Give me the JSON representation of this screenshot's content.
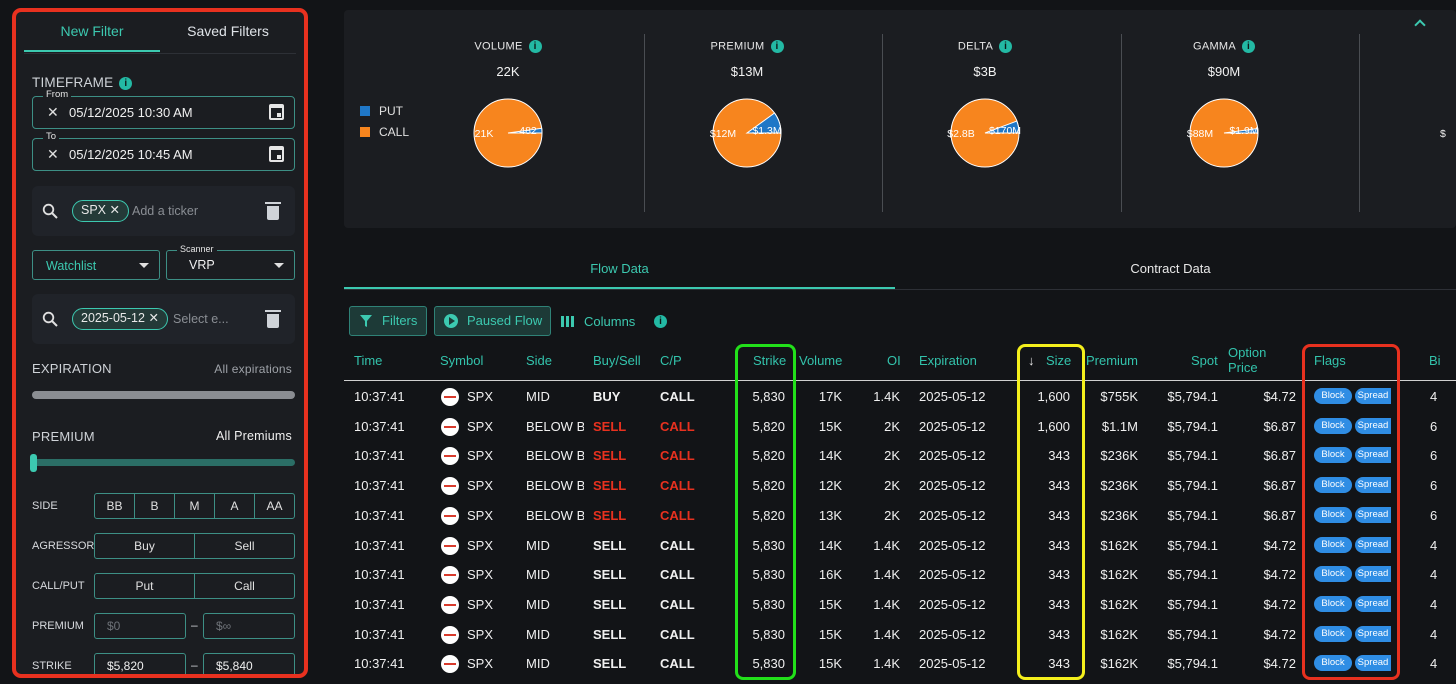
{
  "sidebar": {
    "tabs": {
      "new_filter": "New Filter",
      "saved_filters": "Saved Filters"
    },
    "timeframe": {
      "title": "TIMEFRAME",
      "from_label": "From",
      "from_value": "05/12/2025 10:30 AM",
      "to_label": "To",
      "to_value": "05/12/2025 10:45 AM"
    },
    "ticker": {
      "chip": "SPX",
      "placeholder": "Add a ticker"
    },
    "watchlist": {
      "label": "Watchlist"
    },
    "scanner": {
      "label": "Scanner",
      "value": "VRP"
    },
    "expiry_chip": {
      "chip": "2025-05-12",
      "placeholder": "Select e..."
    },
    "expiration": {
      "title": "EXPIRATION",
      "value": "All expirations"
    },
    "premium": {
      "title": "PREMIUM",
      "value": "All Premiums",
      "slider_level": 0
    },
    "side": {
      "label": "SIDE",
      "options": [
        "BB",
        "B",
        "M",
        "A",
        "AA"
      ]
    },
    "agressor": {
      "label": "AGRESSOR",
      "options": [
        "Buy",
        "Sell"
      ]
    },
    "callput": {
      "label": "CALL/PUT",
      "options": [
        "Put",
        "Call"
      ]
    },
    "premium_range": {
      "label": "PREMIUM",
      "min_placeholder": "$0",
      "max_placeholder": "$∞",
      "dash": "–"
    },
    "strike_range": {
      "label": "STRIKE",
      "min": "$5,820",
      "max": "$5,840",
      "dash": "–"
    }
  },
  "summary": {
    "legend": [
      {
        "name": "PUT",
        "color": "#1f77c7"
      },
      {
        "name": "CALL",
        "color": "#f7851e"
      }
    ],
    "metrics": [
      {
        "title": "VOLUME",
        "total": "22K",
        "call_label": "21K",
        "put_label": "482",
        "put_fraction": 0.022
      },
      {
        "title": "PREMIUM",
        "total": "$13M",
        "call_label": "$12M",
        "put_label": "$1.3M",
        "put_fraction": 0.1
      },
      {
        "title": "DELTA",
        "total": "$3B",
        "call_label": "$2.8B",
        "put_label": "$170M",
        "put_fraction": 0.057
      },
      {
        "title": "GAMMA",
        "total": "$90M",
        "call_label": "$88M",
        "put_label": "$1.9M",
        "put_fraction": 0.021
      }
    ],
    "partial_label": "$"
  },
  "lower_tabs": {
    "flow": "Flow Data",
    "contract": "Contract Data"
  },
  "toolbar": {
    "filters": "Filters",
    "paused": "Paused Flow",
    "columns": "Columns"
  },
  "table": {
    "headers": {
      "time": "Time",
      "symbol": "Symbol",
      "side": "Side",
      "buysell": "Buy/Sell",
      "cp": "C/P",
      "strike": "Strike",
      "volume": "Volume",
      "oi": "OI",
      "expiration": "Expiration",
      "size": "Size",
      "premium": "Premium",
      "spot": "Spot",
      "option_price_1": "Option",
      "option_price_2": "Price",
      "flags": "Flags",
      "bid": "Bi"
    },
    "flag_labels": {
      "block": "Block",
      "spread": "Spread"
    },
    "rows": [
      {
        "time": "10:37:41",
        "symbol": "SPX",
        "side": "MID",
        "bs": "BUY",
        "cp": "CALL",
        "strike": "5,830",
        "volume": "17K",
        "oi": "1.4K",
        "exp": "2025-05-12",
        "size": "1,600",
        "premium": "$755K",
        "spot": "$5,794.1",
        "price": "$4.72",
        "bid": "4",
        "sell": false
      },
      {
        "time": "10:37:41",
        "symbol": "SPX",
        "side": "BELOW BI",
        "bs": "SELL",
        "cp": "CALL",
        "strike": "5,820",
        "volume": "15K",
        "oi": "2K",
        "exp": "2025-05-12",
        "size": "1,600",
        "premium": "$1.1M",
        "spot": "$5,794.1",
        "price": "$6.87",
        "bid": "6",
        "sell": true
      },
      {
        "time": "10:37:41",
        "symbol": "SPX",
        "side": "BELOW BI",
        "bs": "SELL",
        "cp": "CALL",
        "strike": "5,820",
        "volume": "14K",
        "oi": "2K",
        "exp": "2025-05-12",
        "size": "343",
        "premium": "$236K",
        "spot": "$5,794.1",
        "price": "$6.87",
        "bid": "6",
        "sell": true
      },
      {
        "time": "10:37:41",
        "symbol": "SPX",
        "side": "BELOW BI",
        "bs": "SELL",
        "cp": "CALL",
        "strike": "5,820",
        "volume": "12K",
        "oi": "2K",
        "exp": "2025-05-12",
        "size": "343",
        "premium": "$236K",
        "spot": "$5,794.1",
        "price": "$6.87",
        "bid": "6",
        "sell": true
      },
      {
        "time": "10:37:41",
        "symbol": "SPX",
        "side": "BELOW BI",
        "bs": "SELL",
        "cp": "CALL",
        "strike": "5,820",
        "volume": "13K",
        "oi": "2K",
        "exp": "2025-05-12",
        "size": "343",
        "premium": "$236K",
        "spot": "$5,794.1",
        "price": "$6.87",
        "bid": "6",
        "sell": true
      },
      {
        "time": "10:37:41",
        "symbol": "SPX",
        "side": "MID",
        "bs": "SELL",
        "cp": "CALL",
        "strike": "5,830",
        "volume": "14K",
        "oi": "1.4K",
        "exp": "2025-05-12",
        "size": "343",
        "premium": "$162K",
        "spot": "$5,794.1",
        "price": "$4.72",
        "bid": "4",
        "sell": false
      },
      {
        "time": "10:37:41",
        "symbol": "SPX",
        "side": "MID",
        "bs": "SELL",
        "cp": "CALL",
        "strike": "5,830",
        "volume": "16K",
        "oi": "1.4K",
        "exp": "2025-05-12",
        "size": "343",
        "premium": "$162K",
        "spot": "$5,794.1",
        "price": "$4.72",
        "bid": "4",
        "sell": false
      },
      {
        "time": "10:37:41",
        "symbol": "SPX",
        "side": "MID",
        "bs": "SELL",
        "cp": "CALL",
        "strike": "5,830",
        "volume": "15K",
        "oi": "1.4K",
        "exp": "2025-05-12",
        "size": "343",
        "premium": "$162K",
        "spot": "$5,794.1",
        "price": "$4.72",
        "bid": "4",
        "sell": false
      },
      {
        "time": "10:37:41",
        "symbol": "SPX",
        "side": "MID",
        "bs": "SELL",
        "cp": "CALL",
        "strike": "5,830",
        "volume": "15K",
        "oi": "1.4K",
        "exp": "2025-05-12",
        "size": "343",
        "premium": "$162K",
        "spot": "$5,794.1",
        "price": "$4.72",
        "bid": "4",
        "sell": false
      },
      {
        "time": "10:37:41",
        "symbol": "SPX",
        "side": "MID",
        "bs": "SELL",
        "cp": "CALL",
        "strike": "5,830",
        "volume": "15K",
        "oi": "1.4K",
        "exp": "2025-05-12",
        "size": "343",
        "premium": "$162K",
        "spot": "$5,794.1",
        "price": "$4.72",
        "bid": "4",
        "sell": false
      }
    ]
  },
  "colors": {
    "accent": "#3cc9b0",
    "sell_red": "#e8311f",
    "highlight_green": "#22e01a",
    "highlight_yellow": "#f4ef1c",
    "highlight_red": "#e8311f",
    "flag_blue": "#2f8de4"
  }
}
